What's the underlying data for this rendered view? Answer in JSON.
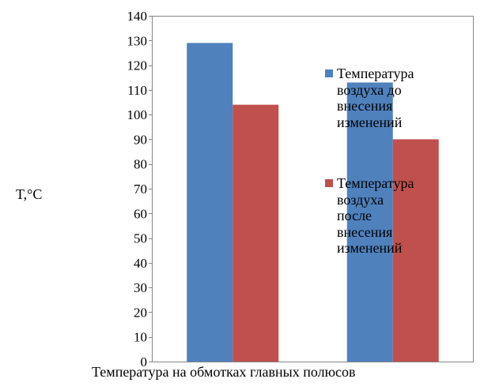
{
  "chart_data": {
    "type": "bar",
    "title": "",
    "xlabel": "Температура на обмотках главных полюсов",
    "ylabel": "T,°C",
    "ylim": [
      0,
      140
    ],
    "yticks": [
      0,
      10,
      20,
      30,
      40,
      50,
      60,
      70,
      80,
      90,
      100,
      110,
      120,
      130,
      140
    ],
    "categories": [
      "",
      ""
    ],
    "grid": false,
    "legend_position": "right, inside plot",
    "series": [
      {
        "name": "Температура воздуха до внесения изменений",
        "color": "#4F81BD",
        "values": [
          129,
          113
        ]
      },
      {
        "name": "Температура воздуха после внесения изменений",
        "color": "#C0504D",
        "values": [
          104,
          90
        ]
      }
    ]
  }
}
